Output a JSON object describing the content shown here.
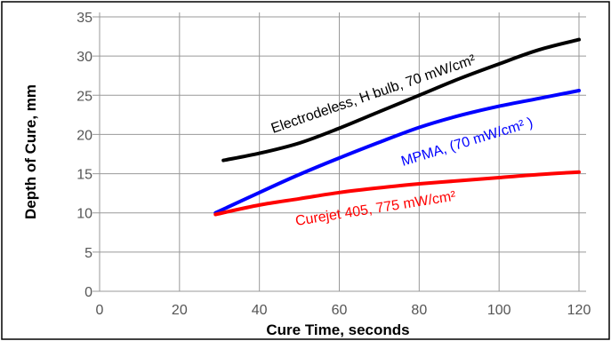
{
  "chart_data": {
    "type": "line",
    "title": "",
    "xlabel": "Cure Time, seconds",
    "ylabel": "Depth of Cure, mm",
    "xlim": [
      0,
      120
    ],
    "ylim": [
      0,
      35
    ],
    "xticks": [
      0,
      20,
      40,
      60,
      80,
      100,
      120
    ],
    "yticks": [
      0,
      5,
      10,
      15,
      20,
      25,
      30,
      35
    ],
    "grid": true,
    "legend": "none",
    "series": [
      {
        "name": "Electrodeless, H bulb, 70 mW/cm²",
        "color": "#000000",
        "x": [
          31,
          40,
          50,
          60,
          70,
          80,
          90,
          100,
          110,
          120
        ],
        "y": [
          16.7,
          17.6,
          18.9,
          20.8,
          22.9,
          25.0,
          27.1,
          29.0,
          30.8,
          32.1
        ]
      },
      {
        "name": "MPMA, (70 mW/cm²  )",
        "color": "#0000ff",
        "x": [
          29,
          40,
          50,
          60,
          70,
          80,
          90,
          100,
          110,
          120
        ],
        "y": [
          10.0,
          12.6,
          14.9,
          17.0,
          19.0,
          20.9,
          22.4,
          23.6,
          24.6,
          25.6
        ]
      },
      {
        "name": "Curejet 405, 775 mW/cm²",
        "color": "#ff0000",
        "x": [
          29,
          40,
          50,
          60,
          70,
          80,
          90,
          100,
          110,
          120
        ],
        "y": [
          9.8,
          11.0,
          11.8,
          12.6,
          13.2,
          13.7,
          14.1,
          14.5,
          14.9,
          15.2
        ]
      }
    ]
  }
}
